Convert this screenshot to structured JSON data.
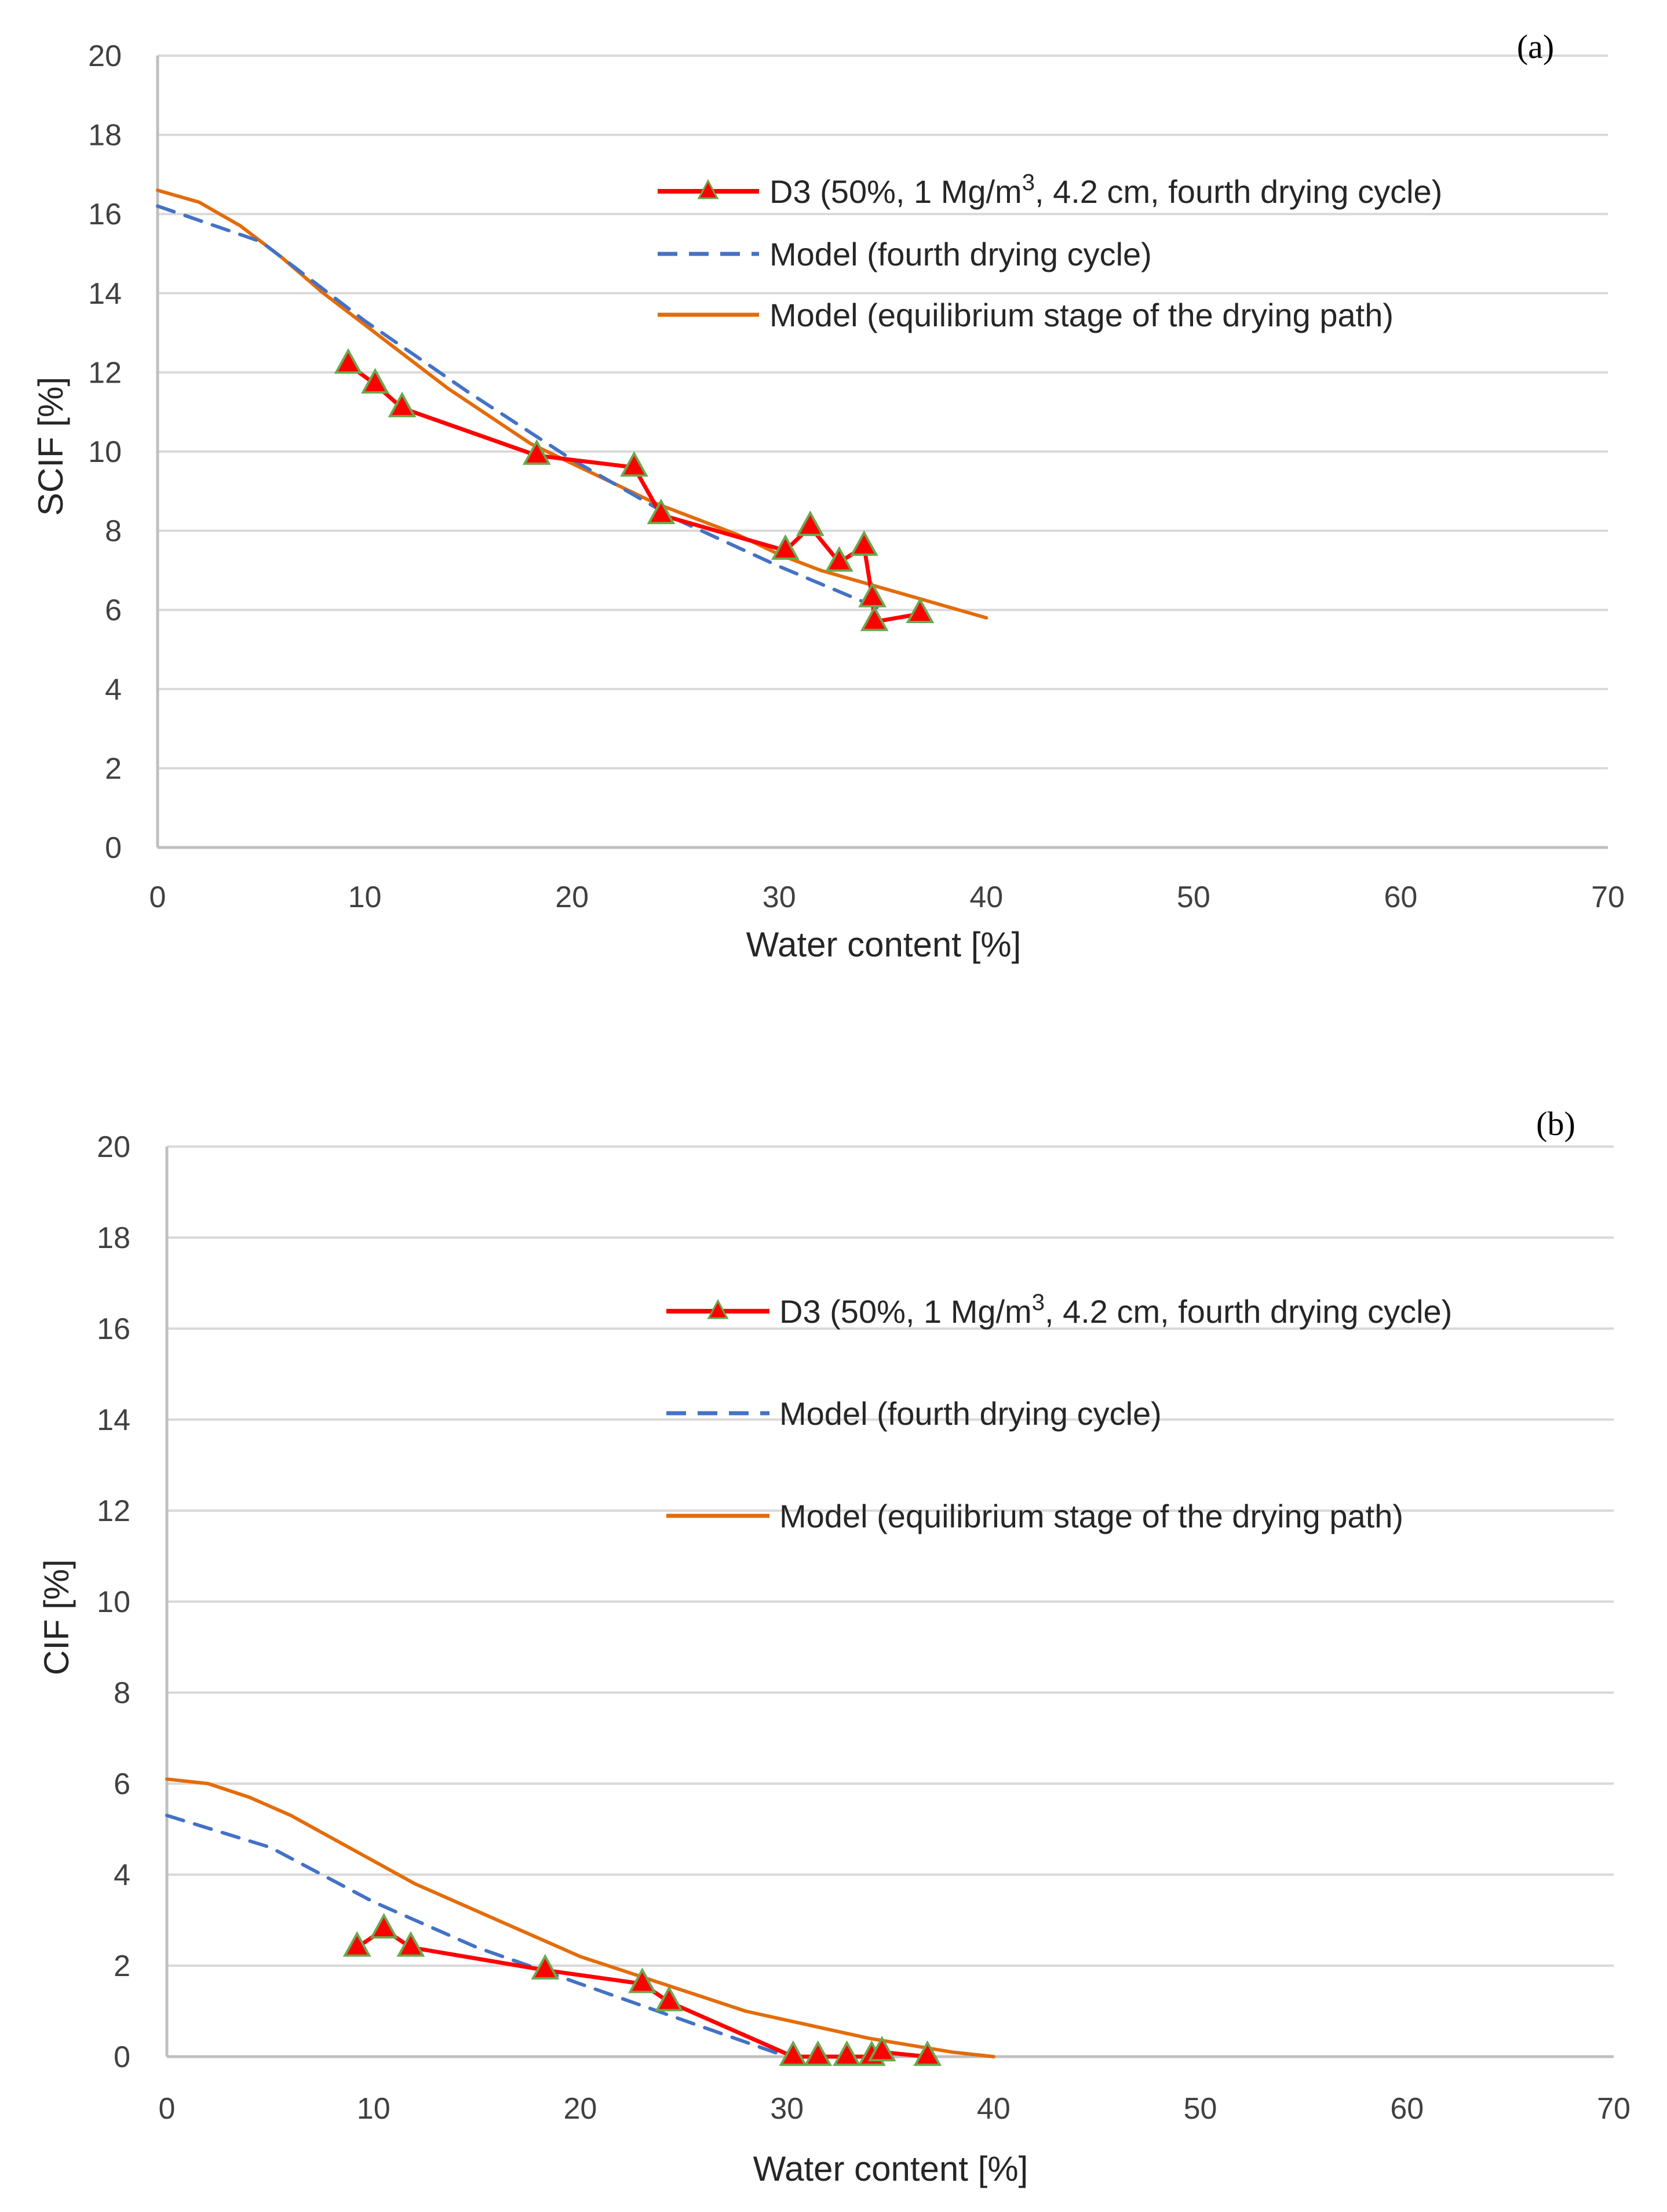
{
  "chart_data": [
    {
      "type": "line",
      "panel_label": "(a)",
      "title": "",
      "xlabel": "Water content [%]",
      "ylabel": "SCIF [%]",
      "xlim": [
        0,
        70
      ],
      "ylim": [
        0,
        20
      ],
      "xticks": [
        0,
        10,
        20,
        30,
        40,
        50,
        60,
        70
      ],
      "yticks": [
        0,
        2,
        4,
        6,
        8,
        10,
        12,
        14,
        16,
        18,
        20
      ],
      "grid": "horizontal",
      "legend_position": "top-right",
      "series": [
        {
          "name": "D3 (50%, 1 Mg/m3, 4.2 cm, fourth drying cycle)",
          "legend_text": "D3 (50%, 1 Mg/m",
          "legend_sup": "3",
          "legend_tail": ", 4.2 cm, fourth drying cycle)",
          "style": "line-triangles",
          "color": "#ff0000",
          "marker_edge": "#6aa84f",
          "x": [
            9.2,
            10.5,
            11.8,
            18.3,
            23.0,
            24.3,
            30.3,
            31.5,
            32.9,
            34.1,
            34.5,
            34.6,
            36.8
          ],
          "y": [
            12.2,
            11.7,
            11.1,
            9.9,
            9.6,
            8.4,
            7.5,
            8.1,
            7.2,
            7.6,
            6.3,
            5.7,
            5.9
          ]
        },
        {
          "name": "Model (fourth drying cycle)",
          "legend_text": "Model (fourth drying cycle)",
          "style": "dashed",
          "color": "#4472c4",
          "x": [
            0,
            5,
            10,
            15,
            20,
            25,
            30,
            35
          ],
          "y": [
            16.2,
            15.3,
            13.3,
            11.5,
            9.8,
            8.3,
            7.1,
            6.0
          ]
        },
        {
          "name": "Model (equilibrium stage of the drying path)",
          "legend_text": "Model (equilibrium stage of the drying path)",
          "style": "solid",
          "color": "#e46c0a",
          "x": [
            0,
            2,
            4,
            6,
            8,
            10,
            12,
            14,
            16,
            18,
            20,
            22,
            24,
            26,
            28,
            30,
            32,
            34,
            36,
            38,
            40
          ],
          "y": [
            16.6,
            16.3,
            15.7,
            14.9,
            14.0,
            13.2,
            12.4,
            11.6,
            10.9,
            10.2,
            9.7,
            9.2,
            8.7,
            8.3,
            7.9,
            7.4,
            7.0,
            6.7,
            6.4,
            6.1,
            5.8
          ]
        }
      ]
    },
    {
      "type": "line",
      "panel_label": "(b)",
      "title": "",
      "xlabel": "Water content [%]",
      "ylabel": "CIF [%]",
      "xlim": [
        0,
        70
      ],
      "ylim": [
        0,
        20
      ],
      "xticks": [
        0,
        10,
        20,
        30,
        40,
        50,
        60,
        70
      ],
      "yticks": [
        0,
        2,
        4,
        6,
        8,
        10,
        12,
        14,
        16,
        18,
        20
      ],
      "grid": "horizontal",
      "legend_position": "top-right",
      "series": [
        {
          "name": "D3 (50%, 1 Mg/m3, 4.2 cm, fourth drying cycle)",
          "legend_text": "D3 (50%, 1 Mg/m",
          "legend_sup": "3",
          "legend_tail": ", 4.2 cm, fourth drying cycle)",
          "style": "line-triangles",
          "color": "#ff0000",
          "marker_edge": "#6aa84f",
          "x": [
            9.2,
            10.5,
            11.8,
            18.3,
            23.0,
            24.3,
            30.3,
            31.5,
            32.9,
            34.1,
            34.6,
            36.8
          ],
          "y": [
            2.4,
            2.8,
            2.4,
            1.9,
            1.6,
            1.2,
            0.0,
            0.0,
            0.0,
            0.0,
            0.1,
            0.0
          ]
        },
        {
          "name": "Model (fourth drying cycle)",
          "legend_text": "Model (fourth drying cycle)",
          "style": "dashed",
          "color": "#4472c4",
          "x": [
            0,
            5,
            10,
            15,
            20,
            25,
            30
          ],
          "y": [
            5.3,
            4.6,
            3.4,
            2.4,
            1.6,
            0.8,
            0.0
          ]
        },
        {
          "name": "Model (equilibrium stage of the drying path)",
          "legend_text": "Model (equilibrium stage of the drying path)",
          "style": "solid",
          "color": "#e46c0a",
          "x": [
            0,
            2,
            4,
            6,
            8,
            10,
            12,
            14,
            16,
            18,
            20,
            22,
            24,
            26,
            28,
            30,
            32,
            34,
            36,
            38,
            40
          ],
          "y": [
            6.1,
            6.0,
            5.7,
            5.3,
            4.8,
            4.3,
            3.8,
            3.4,
            3.0,
            2.6,
            2.2,
            1.9,
            1.6,
            1.3,
            1.0,
            0.8,
            0.6,
            0.4,
            0.25,
            0.1,
            0.0
          ]
        }
      ]
    }
  ]
}
